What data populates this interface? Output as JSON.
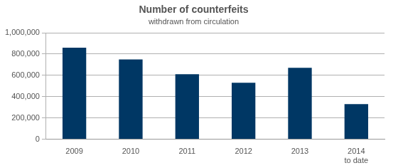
{
  "chart_data": {
    "type": "bar",
    "title": "Number of counterfeits",
    "subtitle": "withdrawn from circulation",
    "categories": [
      "2009",
      "2010",
      "2011",
      "2012",
      "2013",
      "2014 to date"
    ],
    "values": [
      860000,
      750000,
      610000,
      530000,
      670000,
      330000
    ],
    "color": "#003764",
    "ylim": [
      0,
      1000000
    ],
    "yticks": [
      0,
      {
        "value": 200000,
        "label": "200,000"
      },
      {
        "value": 400000,
        "label": "400,000"
      },
      {
        "value": 600000,
        "label": "600,000"
      },
      {
        "value": 800000,
        "label": "800,000"
      },
      {
        "value": 1000000,
        "label": "1,000,000"
      }
    ],
    "grid": true
  }
}
